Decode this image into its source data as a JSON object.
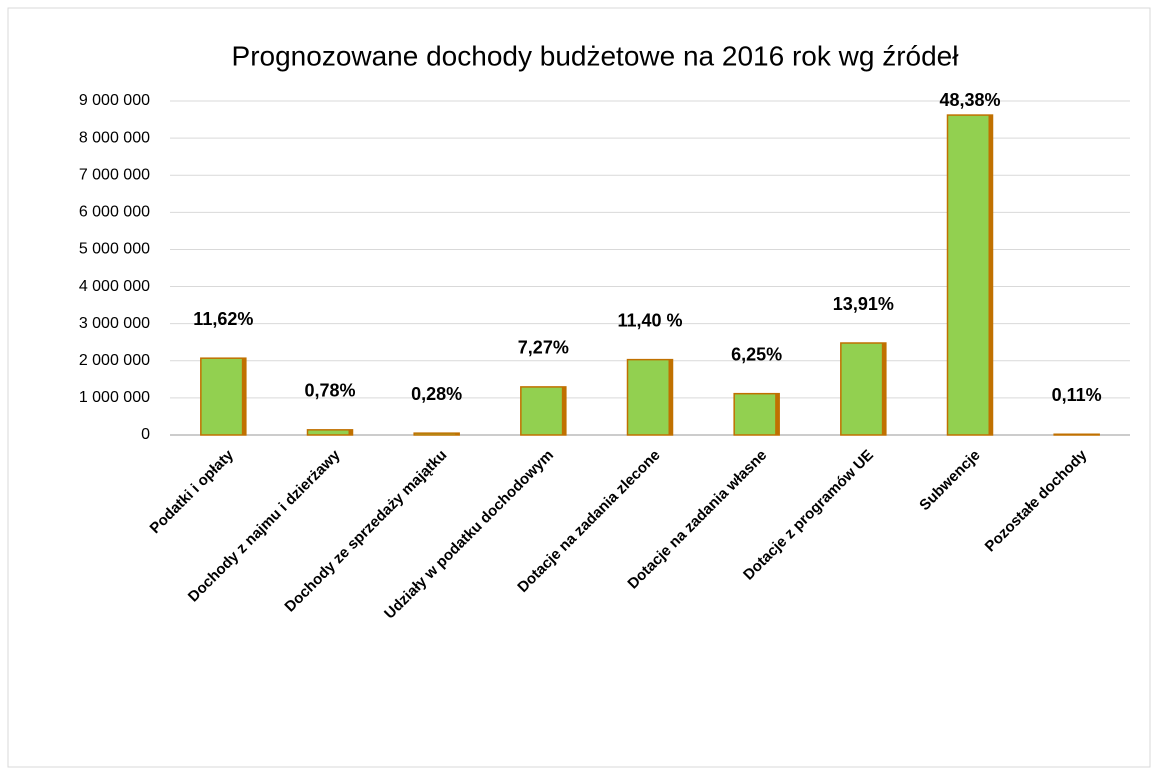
{
  "chart_data": {
    "type": "bar",
    "title": "Prognozowane dochody budżetowe na 2016 rok wg źródeł",
    "categories": [
      "Podatki i opłaty",
      "Dochody z najmu i dzierżawy",
      "Dochody ze sprzedaży majątku",
      "Udziały w podatku dochodowym",
      "Dotacje na zadania zlecone",
      "Dotacje na zadania własne",
      "Dotacje z programów UE",
      "Subwencje",
      "Pozostałe dochody"
    ],
    "values": [
      2070000,
      139000,
      50000,
      1296000,
      2031000,
      1114000,
      2479000,
      8621000,
      20000
    ],
    "shares": [
      {
        "value": 11.62,
        "label": "11,62%"
      },
      {
        "value": 0.78,
        "label": "0,78%"
      },
      {
        "value": 0.28,
        "label": "0,28%"
      },
      {
        "value": 7.27,
        "label": "7,27%"
      },
      {
        "value": 11.4,
        "label": "11,40 %"
      },
      {
        "value": 6.25,
        "label": "6,25%"
      },
      {
        "value": 13.91,
        "label": "13,91%"
      },
      {
        "value": 48.38,
        "label": "48,38%"
      },
      {
        "value": 0.11,
        "label": "0,11%"
      }
    ],
    "color": "#92d050",
    "edge_color": "#c07000",
    "ylim": [
      0,
      9000000
    ],
    "yticks": [
      0,
      {
        "value": 1000000,
        "label": "1 000 000"
      },
      {
        "value": 2000000,
        "label": "2 000 000"
      },
      {
        "value": 3000000,
        "label": "3 000 000"
      },
      {
        "value": 4000000,
        "label": "4 000 000"
      },
      {
        "value": 5000000,
        "label": "5 000 000"
      },
      {
        "value": 6000000,
        "label": "6 000 000"
      },
      {
        "value": 7000000,
        "label": "7 000 000"
      },
      {
        "value": 8000000,
        "label": "8 000 000"
      },
      {
        "value": 9000000,
        "label": "9 000 000"
      }
    ],
    "grid": true
  }
}
